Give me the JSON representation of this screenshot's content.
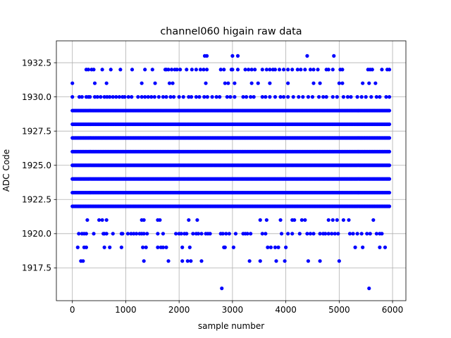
{
  "chart_data": {
    "type": "scatter",
    "title": "channel060 higain raw data",
    "xlabel": "sample number",
    "ylabel": "ADC Code",
    "xlim": [
      -300,
      6250
    ],
    "ylim": [
      1915.1,
      1934.1
    ],
    "xticks": [
      0,
      1000,
      2000,
      3000,
      4000,
      5000,
      6000
    ],
    "yticks": [
      1917.5,
      1920.0,
      1922.5,
      1925.0,
      1927.5,
      1930.0,
      1932.5
    ],
    "xtick_labels": [
      "0",
      "1000",
      "2000",
      "3000",
      "4000",
      "5000",
      "6000"
    ],
    "ytick_labels": [
      "1917.5",
      "1920.0",
      "1922.5",
      "1925.0",
      "1927.5",
      "1930.0",
      "1932.5"
    ],
    "grid": true,
    "marker_color": "#0000ff",
    "x_range": [
      0,
      5940
    ],
    "dense_levels": [
      1922,
      1923,
      1924,
      1925,
      1926,
      1927,
      1928,
      1929
    ],
    "sparse_levels": [
      {
        "y": 1930,
        "x": [
          0,
          130,
          180,
          260,
          300,
          330,
          420,
          470,
          530,
          600,
          650,
          700,
          760,
          820,
          880,
          940,
          980,
          1050,
          1110,
          1230,
          1300,
          1360,
          1420,
          1480,
          1540,
          1620,
          1700,
          1760,
          1840,
          1900,
          2000,
          2080,
          2180,
          2230,
          2320,
          2380,
          2470,
          2530,
          2620,
          2700,
          2760,
          2900,
          2960,
          3040,
          3200,
          3260,
          3340,
          3400,
          3560,
          3620,
          3700,
          3800,
          3900,
          3960,
          4040,
          4140,
          4240,
          4320,
          4420,
          4500,
          4620,
          4700,
          4760,
          4880,
          4960,
          5080,
          5160,
          5220,
          5340,
          5420,
          5500,
          5600,
          5700,
          5760,
          5880,
          5940
        ]
      },
      {
        "y": 1931,
        "x": [
          0,
          420,
          640,
          1300,
          1550,
          1820,
          1880,
          2500,
          2860,
          2920,
          3040,
          3360,
          3480,
          3700,
          4040,
          4520,
          4640,
          5000,
          5060,
          5440,
          5560,
          5680
        ]
      },
      {
        "y": 1932,
        "x": [
          260,
          300,
          360,
          400,
          560,
          720,
          900,
          1120,
          1360,
          1500,
          1740,
          1760,
          1800,
          1860,
          1920,
          1960,
          2020,
          2140,
          2240,
          2320,
          2400,
          2460,
          2520,
          2780,
          2840,
          2980,
          3000,
          3100,
          3240,
          3300,
          3360,
          3420,
          3560,
          3640,
          3700,
          3760,
          3800,
          3880,
          3960,
          4040,
          4120,
          4220,
          4280,
          4360,
          4460,
          4520,
          4600,
          4760,
          4800,
          4880,
          5020,
          5060,
          5540,
          5580,
          5620,
          5800,
          5900,
          5940
        ]
      },
      {
        "y": 1933,
        "x": [
          2480,
          2520,
          3000,
          3100,
          4400,
          4900
        ]
      },
      {
        "y": 1921,
        "x": [
          280,
          500,
          560,
          640,
          1300,
          1340,
          1600,
          1640,
          2180,
          2340,
          3520,
          3640,
          3900,
          4120,
          4160,
          4300,
          4360,
          4800,
          4880,
          4960,
          5080,
          5180,
          5640
        ]
      },
      {
        "y": 1920,
        "x": [
          120,
          180,
          220,
          260,
          400,
          580,
          600,
          640,
          760,
          920,
          940,
          1040,
          1100,
          1150,
          1200,
          1260,
          1300,
          1340,
          1400,
          1600,
          1700,
          1940,
          2000,
          2040,
          2100,
          2140,
          2260,
          2320,
          2360,
          2420,
          2500,
          2540,
          2580,
          2780,
          2820,
          2880,
          2940,
          3060,
          3200,
          3240,
          3280,
          3340,
          3560,
          3620,
          3920,
          4040,
          4120,
          4260,
          4400,
          4460,
          4520,
          4640,
          4700,
          4740,
          4800,
          4860,
          4920,
          4980,
          5200,
          5260,
          5340,
          5420,
          5520,
          5580,
          5700,
          5760,
          5800
        ]
      },
      {
        "y": 1919,
        "x": [
          100,
          220,
          260,
          600,
          700,
          920,
          1320,
          1380,
          1600,
          1660,
          1700,
          1760,
          2060,
          2200,
          2840,
          2860,
          3020,
          3660,
          3720,
          3800,
          3860,
          4000,
          5300,
          5440,
          5760,
          5860
        ]
      },
      {
        "y": 1918,
        "x": [
          160,
          200,
          1340,
          1800,
          2060,
          2160,
          2220,
          2420,
          3320,
          3520,
          3820,
          3980,
          4420,
          4640,
          5000
        ]
      },
      {
        "y": 1916,
        "x": [
          2800,
          5560
        ]
      }
    ]
  }
}
